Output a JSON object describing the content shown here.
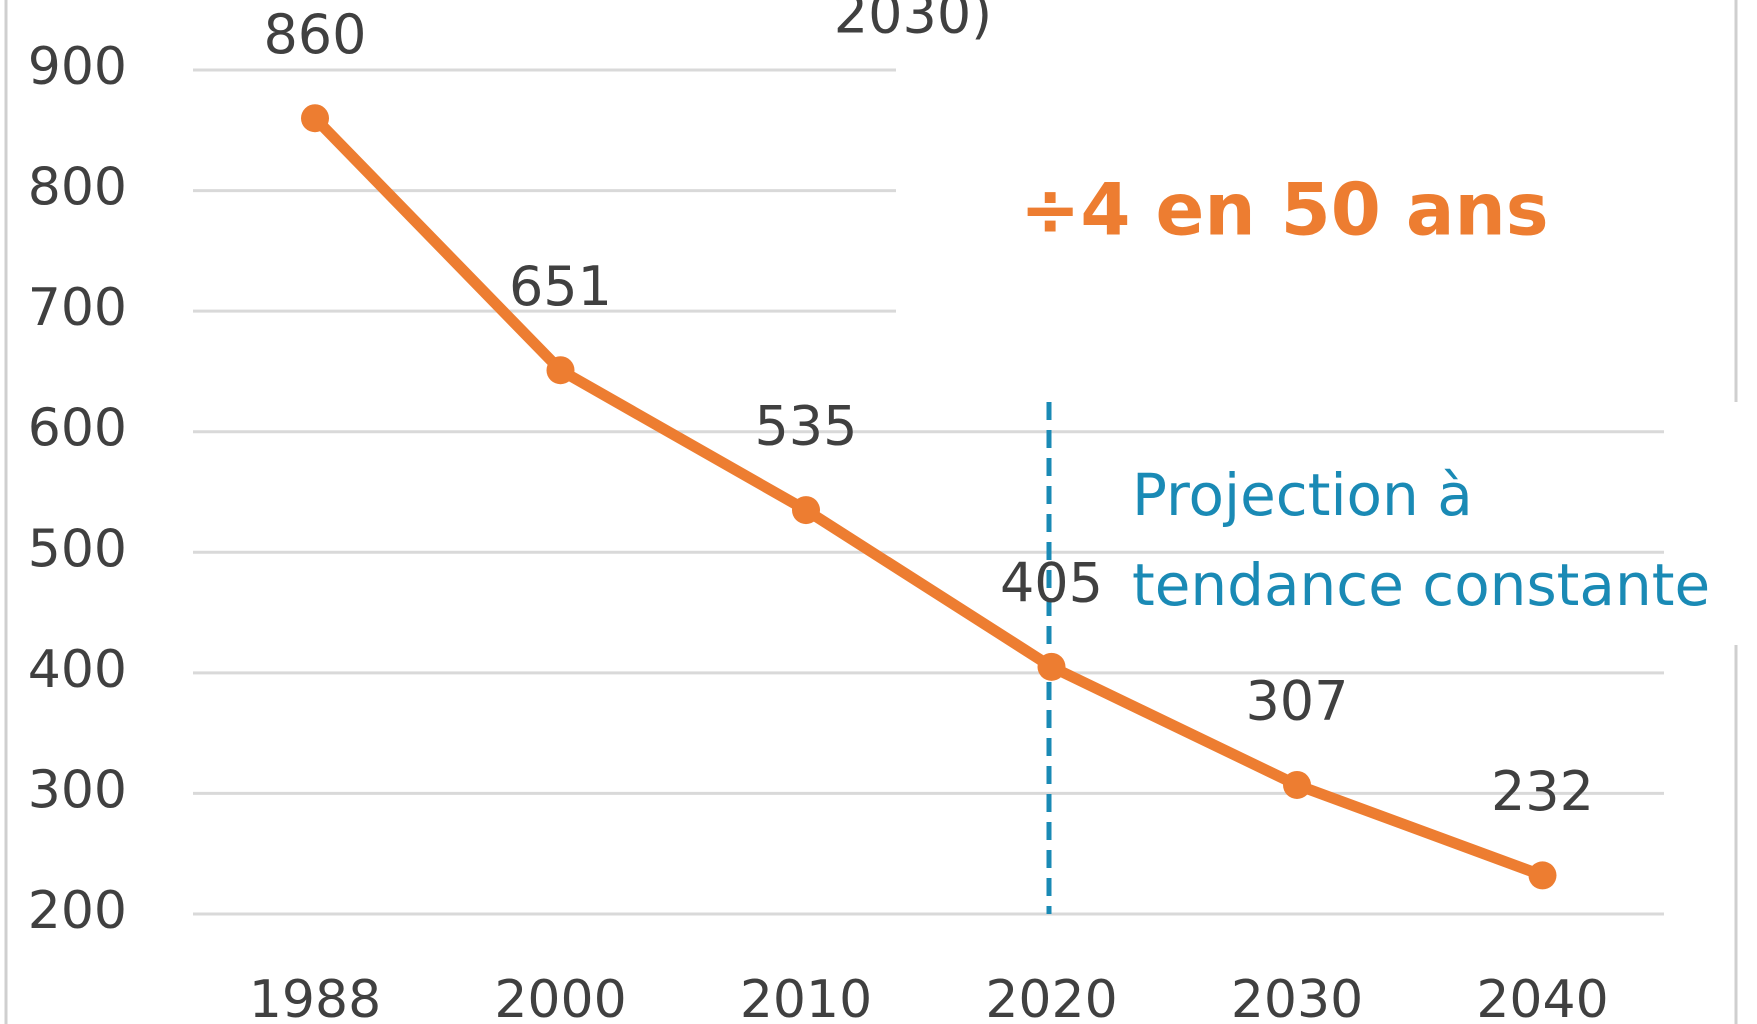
{
  "chart_data": {
    "type": "line",
    "title_fragment": "2030)",
    "categories": [
      "1988",
      "2000",
      "2010",
      "2020",
      "2030",
      "2040"
    ],
    "series": [
      {
        "name": null,
        "color": "#ed7d31",
        "values": [
          860,
          651,
          535,
          405,
          307,
          232
        ]
      }
    ],
    "ylim": [
      200,
      900
    ],
    "yticks": [
      200,
      300,
      400,
      500,
      600,
      700,
      800,
      900
    ],
    "grid": true,
    "annotations": [
      "÷4 en 50 ans",
      "Projection à",
      "tendance constante"
    ]
  }
}
